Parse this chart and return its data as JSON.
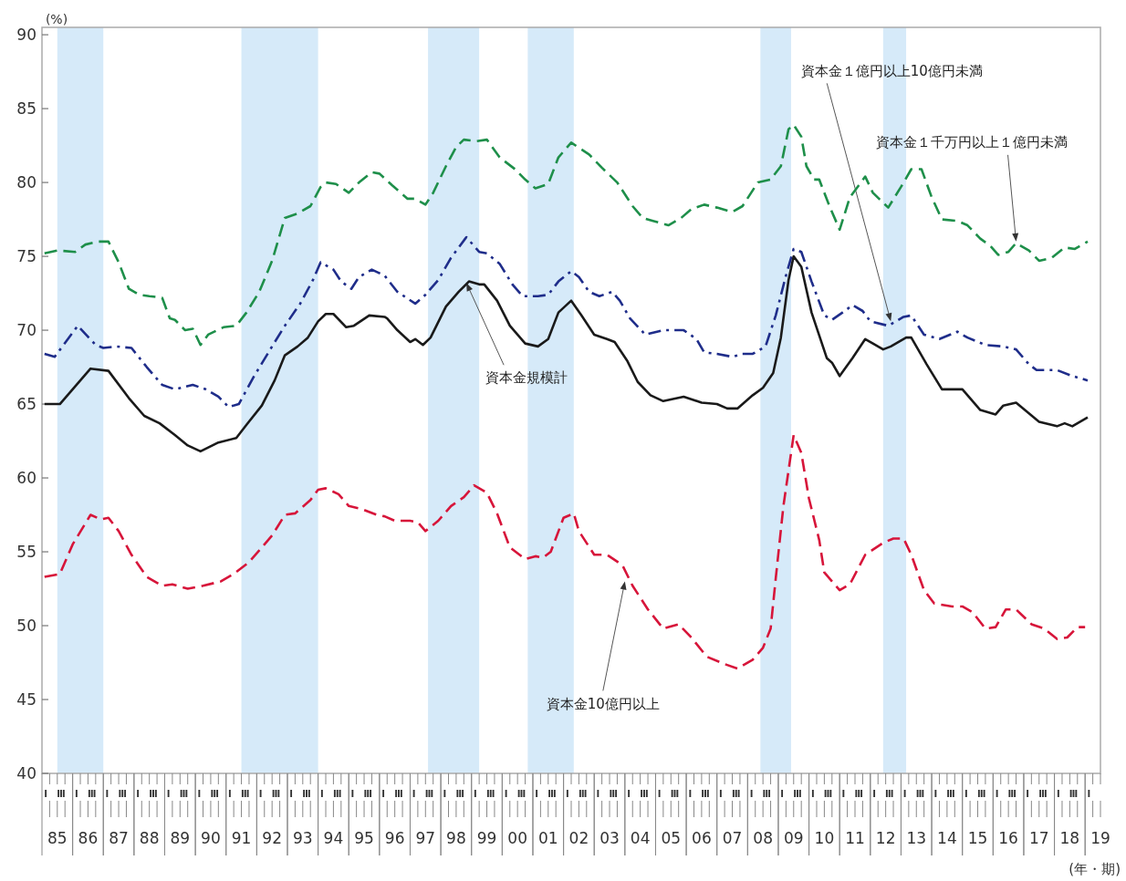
{
  "chart_data": {
    "type": "line",
    "ylabel": "(%)",
    "xlabel": "(年・期)",
    "xlim": [
      "1985-01",
      "2019-07"
    ],
    "ylim": [
      40,
      90.5
    ],
    "yticks": [
      40,
      45,
      50,
      55,
      60,
      65,
      70,
      75,
      80,
      85,
      90
    ],
    "xticks": [
      {
        "value": "1985-07",
        "label": "85"
      },
      {
        "value": "1986-07",
        "label": "86"
      },
      {
        "value": "1987-07",
        "label": "87"
      },
      {
        "value": "1988-07",
        "label": "88"
      },
      {
        "value": "1989-07",
        "label": "89"
      },
      {
        "value": "1990-07",
        "label": "90"
      },
      {
        "value": "1991-07",
        "label": "91"
      },
      {
        "value": "1992-07",
        "label": "92"
      },
      {
        "value": "1993-07",
        "label": "93"
      },
      {
        "value": "1994-07",
        "label": "94"
      },
      {
        "value": "1995-07",
        "label": "95"
      },
      {
        "value": "1996-07",
        "label": "96"
      },
      {
        "value": "1997-07",
        "label": "97"
      },
      {
        "value": "1998-07",
        "label": "98"
      },
      {
        "value": "1999-07",
        "label": "99"
      },
      {
        "value": "2000-07",
        "label": "00"
      },
      {
        "value": "2001-07",
        "label": "01"
      },
      {
        "value": "2002-07",
        "label": "02"
      },
      {
        "value": "2003-07",
        "label": "03"
      },
      {
        "value": "2004-07",
        "label": "04"
      },
      {
        "value": "2005-07",
        "label": "05"
      },
      {
        "value": "2006-07",
        "label": "06"
      },
      {
        "value": "2007-07",
        "label": "07"
      },
      {
        "value": "2008-07",
        "label": "08"
      },
      {
        "value": "2009-07",
        "label": "09"
      },
      {
        "value": "2010-07",
        "label": "10"
      },
      {
        "value": "2011-07",
        "label": "11"
      },
      {
        "value": "2012-07",
        "label": "12"
      },
      {
        "value": "2013-07",
        "label": "13"
      },
      {
        "value": "2014-07",
        "label": "14"
      },
      {
        "value": "2015-07",
        "label": "15"
      },
      {
        "value": "2016-07",
        "label": "16"
      },
      {
        "value": "2017-07",
        "label": "17"
      },
      {
        "value": "2018-07",
        "label": "18"
      },
      {
        "value": "2019-07",
        "label": "19"
      }
    ],
    "bands": [
      {
        "axis": "x",
        "from": "1985-07",
        "to": "1987-01",
        "color": "#d6eaf9"
      },
      {
        "axis": "x",
        "from": "1991-07",
        "to": "1994-01",
        "color": "#d6eaf9"
      },
      {
        "axis": "x",
        "from": "1997-08",
        "to": "1999-04",
        "color": "#d6eaf9"
      },
      {
        "axis": "x",
        "from": "2000-11",
        "to": "2002-05",
        "color": "#d6eaf9"
      },
      {
        "axis": "x",
        "from": "2008-06",
        "to": "2009-06",
        "color": "#d6eaf9"
      },
      {
        "axis": "x",
        "from": "2012-06",
        "to": "2013-03",
        "color": "#d6eaf9"
      }
    ],
    "series": [
      {
        "color": "#1e8f4a",
        "line_style": "dashed",
        "x": [
          "1985-02",
          "1985-07",
          "1986-02",
          "1986-06",
          "1986-11",
          "1987-03",
          "1987-07",
          "1987-11",
          "1988-03",
          "1988-07",
          "1988-12",
          "1989-03",
          "1989-05",
          "1989-09",
          "1989-12",
          "1990-03",
          "1990-06",
          "1990-12",
          "1991-05",
          "1991-09",
          "1992-02",
          "1992-07",
          "1992-12",
          "1993-05",
          "1993-10",
          "1994-02",
          "1994-04",
          "1994-08",
          "1995-01",
          "1995-05",
          "1995-10",
          "1996-01",
          "1996-06",
          "1996-12",
          "1997-03",
          "1997-07",
          "1997-10",
          "1998-03",
          "1998-07",
          "1998-10",
          "1999-03",
          "1999-07",
          "1999-12",
          "2000-06",
          "2000-10",
          "2001-02",
          "2001-07",
          "2001-11",
          "2002-04",
          "2002-11",
          "2003-04",
          "2003-10",
          "2004-04",
          "2004-08",
          "2004-12",
          "2005-06",
          "2005-11",
          "2006-03",
          "2006-08",
          "2007-01",
          "2007-07",
          "2007-11",
          "2008-05",
          "2008-10",
          "2009-02",
          "2009-05",
          "2009-07",
          "2009-10",
          "2009-12",
          "2010-03",
          "2010-05",
          "2010-09",
          "2011-01",
          "2011-05",
          "2011-11",
          "2012-02",
          "2012-08",
          "2013-01",
          "2013-05",
          "2013-09",
          "2014-01",
          "2014-05",
          "2014-11",
          "2015-03",
          "2015-08",
          "2015-12",
          "2016-03",
          "2016-07",
          "2016-10",
          "2017-03",
          "2017-07",
          "2017-12",
          "2018-05",
          "2018-09",
          "2019-02"
        ],
        "values": [
          75.2,
          75.4,
          75.3,
          75.8,
          76.0,
          76.0,
          74.6,
          72.8,
          72.4,
          72.3,
          72.2,
          70.8,
          70.7,
          70.0,
          70.1,
          69.0,
          69.7,
          70.2,
          70.3,
          71.2,
          72.6,
          74.7,
          77.6,
          77.9,
          78.4,
          79.7,
          80.0,
          79.9,
          79.3,
          80.0,
          80.7,
          80.6,
          79.8,
          78.9,
          78.9,
          78.5,
          79.3,
          81.1,
          82.4,
          82.9,
          82.8,
          82.9,
          81.7,
          80.9,
          80.2,
          79.6,
          79.9,
          81.7,
          82.7,
          81.9,
          81.0,
          80.0,
          78.4,
          77.6,
          77.4,
          77.1,
          77.6,
          78.2,
          78.5,
          78.3,
          78.0,
          78.4,
          80.0,
          80.2,
          81.1,
          83.6,
          83.9,
          83.1,
          81.1,
          80.2,
          80.2,
          78.4,
          76.8,
          79.0,
          80.4,
          79.3,
          78.3,
          79.7,
          80.9,
          80.9,
          79.0,
          77.5,
          77.4,
          77.1,
          76.2,
          75.7,
          75.1,
          75.3,
          75.9,
          75.4,
          74.7,
          74.9,
          75.6,
          75.5,
          76.0
        ]
      },
      {
        "color": "#1f2d8a",
        "line_style": "dashdot",
        "x": [
          "1985-02",
          "1985-06",
          "1986-03",
          "1986-10",
          "1987-01",
          "1987-06",
          "1987-12",
          "1988-06",
          "1988-12",
          "1989-05",
          "1989-12",
          "1990-05",
          "1990-10",
          "1991-02",
          "1991-06",
          "1991-12",
          "1992-07",
          "1992-12",
          "1993-06",
          "1993-11",
          "1994-02",
          "1994-07",
          "1994-10",
          "1995-02",
          "1995-05",
          "1995-10",
          "1996-03",
          "1996-08",
          "1997-03",
          "1997-07",
          "1997-12",
          "1998-05",
          "1998-11",
          "1999-04",
          "1999-07",
          "1999-12",
          "2000-05",
          "2000-09",
          "2001-03",
          "2001-07",
          "2001-11",
          "2002-04",
          "2002-07",
          "2002-11",
          "2003-03",
          "2003-08",
          "2003-11",
          "2004-03",
          "2004-09",
          "2005-04",
          "2005-12",
          "2006-05",
          "2006-08",
          "2007-01",
          "2007-07",
          "2007-11",
          "2008-03",
          "2008-08",
          "2008-12",
          "2009-04",
          "2009-07",
          "2009-10",
          "2010-02",
          "2010-07",
          "2010-10",
          "2011-03",
          "2011-06",
          "2011-10",
          "2012-01",
          "2012-08",
          "2013-02",
          "2013-05",
          "2013-10",
          "2014-04",
          "2014-11",
          "2015-03",
          "2015-10",
          "2016-05",
          "2016-10",
          "2017-03",
          "2017-06",
          "2018-02",
          "2018-08",
          "2019-02"
        ],
        "values": [
          68.4,
          68.2,
          70.3,
          69.0,
          68.8,
          68.9,
          68.8,
          67.5,
          66.3,
          66.0,
          66.3,
          66.0,
          65.5,
          64.8,
          65.0,
          66.9,
          68.9,
          70.3,
          71.8,
          73.4,
          74.6,
          74.1,
          73.3,
          72.8,
          73.6,
          74.1,
          73.7,
          72.6,
          71.8,
          72.4,
          73.4,
          74.9,
          76.3,
          75.3,
          75.2,
          74.5,
          73.1,
          72.3,
          72.3,
          72.4,
          73.3,
          74.0,
          73.6,
          72.6,
          72.3,
          72.6,
          72.0,
          70.8,
          69.7,
          70.0,
          70.0,
          69.4,
          68.5,
          68.4,
          68.2,
          68.4,
          68.4,
          68.9,
          71.0,
          73.7,
          75.5,
          75.3,
          73.3,
          71.0,
          70.7,
          71.3,
          71.7,
          71.3,
          70.6,
          70.3,
          70.9,
          71.0,
          69.7,
          69.4,
          69.9,
          69.5,
          69.0,
          68.9,
          68.7,
          67.7,
          67.3,
          67.3,
          66.9,
          66.6
        ]
      },
      {
        "color": "#1a1a1a",
        "line_style": "solid",
        "x": [
          "1985-02",
          "1985-08",
          "1986-08",
          "1987-03",
          "1987-11",
          "1988-05",
          "1988-11",
          "1989-05",
          "1989-10",
          "1990-03",
          "1990-10",
          "1991-05",
          "1991-09",
          "1992-03",
          "1992-08",
          "1992-12",
          "1993-05",
          "1993-09",
          "1994-01",
          "1994-04",
          "1994-07",
          "1994-12",
          "1995-03",
          "1995-09",
          "1996-03",
          "1996-04",
          "1996-08",
          "1997-01",
          "1997-03",
          "1997-06",
          "1997-09",
          "1998-03",
          "1998-08",
          "1998-12",
          "1999-04",
          "1999-06",
          "1999-11",
          "2000-04",
          "2000-07",
          "2000-10",
          "2001-03",
          "2001-07",
          "2001-11",
          "2002-04",
          "2002-08",
          "2003-01",
          "2003-06",
          "2003-09",
          "2004-02",
          "2004-06",
          "2004-11",
          "2005-04",
          "2005-12",
          "2006-07",
          "2007-01",
          "2007-05",
          "2007-09",
          "2008-03",
          "2008-07",
          "2008-11",
          "2009-02",
          "2009-05",
          "2009-07",
          "2009-10",
          "2010-02",
          "2010-08",
          "2010-10",
          "2011-01",
          "2011-06",
          "2011-11",
          "2012-02",
          "2012-06",
          "2012-09",
          "2013-03",
          "2013-05",
          "2013-11",
          "2014-05",
          "2015-01",
          "2015-08",
          "2016-02",
          "2016-05",
          "2016-10",
          "2017-07",
          "2018-02",
          "2018-05",
          "2018-08",
          "2019-02"
        ],
        "values": [
          65.0,
          65.0,
          67.4,
          67.25,
          65.4,
          64.2,
          63.7,
          62.9,
          62.2,
          61.8,
          62.4,
          62.7,
          63.6,
          64.9,
          66.6,
          68.3,
          68.9,
          69.5,
          70.6,
          71.1,
          71.1,
          70.2,
          70.3,
          71.0,
          70.9,
          70.8,
          70.0,
          69.2,
          69.4,
          69.0,
          69.5,
          71.6,
          72.6,
          73.3,
          73.1,
          73.1,
          72.0,
          70.3,
          69.7,
          69.1,
          68.9,
          69.4,
          71.2,
          72.0,
          71.0,
          69.7,
          69.4,
          69.2,
          67.9,
          66.5,
          65.6,
          65.2,
          65.5,
          65.1,
          65.0,
          64.7,
          64.7,
          65.6,
          66.1,
          67.1,
          69.5,
          73.4,
          75.0,
          74.3,
          71.2,
          68.1,
          67.8,
          66.9,
          68.1,
          69.4,
          69.1,
          68.7,
          68.9,
          69.5,
          69.5,
          67.7,
          66.0,
          66.0,
          64.6,
          64.3,
          64.9,
          65.1,
          63.8,
          63.5,
          63.7,
          63.5,
          64.1
        ]
      },
      {
        "color": "#d7153a",
        "line_style": "dashed",
        "x": [
          "1985-02",
          "1985-08",
          "1986-01",
          "1986-08",
          "1986-12",
          "1987-03",
          "1987-07",
          "1987-12",
          "1988-06",
          "1988-12",
          "1989-04",
          "1989-10",
          "1990-04",
          "1990-11",
          "1991-04",
          "1991-10",
          "1992-03",
          "1992-07",
          "1992-12",
          "1993-04",
          "1993-10",
          "1994-01",
          "1994-04",
          "1994-09",
          "1995-01",
          "1995-06",
          "1995-12",
          "1996-03",
          "1996-07",
          "1997-01",
          "1997-04",
          "1997-07",
          "1997-12",
          "1998-05",
          "1998-10",
          "1999-02",
          "1999-07",
          "1999-11",
          "2000-04",
          "2000-10",
          "2001-02",
          "2001-05",
          "2001-08",
          "2002-01",
          "2002-05",
          "2002-07",
          "2003-01",
          "2003-06",
          "2003-12",
          "2004-04",
          "2004-10",
          "2005-04",
          "2005-10",
          "2006-03",
          "2006-09",
          "2007-04",
          "2007-09",
          "2008-03",
          "2008-07",
          "2008-10",
          "2008-12",
          "2009-03",
          "2009-07",
          "2009-10",
          "2010-01",
          "2010-05",
          "2010-07",
          "2011-01",
          "2011-05",
          "2011-11",
          "2012-06",
          "2012-10",
          "2013-02",
          "2013-05",
          "2013-10",
          "2014-02",
          "2014-09",
          "2015-01",
          "2015-05",
          "2015-10",
          "2016-02",
          "2016-06",
          "2016-10",
          "2017-04",
          "2017-09",
          "2018-02",
          "2018-06",
          "2018-10",
          "2019-01"
        ],
        "values": [
          53.3,
          53.5,
          55.5,
          57.5,
          57.2,
          57.3,
          56.4,
          54.8,
          53.3,
          52.7,
          52.8,
          52.5,
          52.7,
          53.0,
          53.5,
          54.3,
          55.3,
          56.1,
          57.5,
          57.6,
          58.5,
          59.2,
          59.3,
          58.9,
          58.1,
          57.9,
          57.5,
          57.4,
          57.1,
          57.1,
          57.0,
          56.4,
          57.1,
          58.1,
          58.7,
          59.5,
          59.0,
          57.6,
          55.3,
          54.5,
          54.7,
          54.6,
          55.0,
          57.3,
          57.6,
          56.4,
          54.8,
          54.8,
          54.1,
          52.7,
          51.1,
          49.8,
          50.1,
          49.2,
          47.9,
          47.4,
          47.1,
          47.7,
          48.5,
          49.8,
          53.2,
          58.1,
          62.9,
          61.7,
          58.6,
          55.8,
          53.6,
          52.4,
          52.8,
          54.8,
          55.6,
          55.9,
          55.9,
          54.8,
          52.4,
          51.5,
          51.3,
          51.3,
          50.9,
          49.8,
          49.9,
          51.1,
          51.1,
          50.1,
          49.8,
          49.1,
          49.2,
          49.9,
          49.9
        ]
      }
    ],
    "annotations": [
      {
        "text": "資本金規模計",
        "x": "1998-11",
        "y": 73.2
      },
      {
        "text": "資本金10億円以上",
        "x": "2004-01",
        "y": 53.0
      },
      {
        "text": "資本金１億円以上10億円未満",
        "x": "2012-09",
        "y": 70.6
      },
      {
        "text": "資本金１千万円以上１億円未満",
        "x": "2016-10",
        "y": 76.0
      },
      "Ⅰ",
      "Ⅲ",
      "Ⅰ",
      "Ⅲ",
      "Ⅰ",
      "Ⅲ",
      "Ⅰ",
      "Ⅲ",
      "Ⅰ",
      "Ⅲ",
      "Ⅰ",
      "Ⅲ",
      "Ⅰ",
      "Ⅲ",
      "Ⅰ",
      "Ⅲ",
      "Ⅰ",
      "Ⅲ",
      "Ⅰ",
      "Ⅲ",
      "Ⅰ",
      "Ⅲ",
      "Ⅰ",
      "Ⅲ",
      "Ⅰ",
      "Ⅲ",
      "Ⅰ",
      "Ⅲ",
      "Ⅰ",
      "Ⅲ",
      "Ⅰ",
      "Ⅲ",
      "Ⅰ",
      "Ⅲ",
      "Ⅰ",
      "Ⅲ",
      "Ⅰ",
      "Ⅲ",
      "Ⅰ",
      "Ⅲ",
      "Ⅰ",
      "Ⅲ",
      "Ⅰ",
      "Ⅲ",
      "Ⅰ",
      "Ⅲ",
      "Ⅰ",
      "Ⅲ",
      "Ⅰ",
      "Ⅲ",
      "Ⅰ",
      "Ⅲ",
      "Ⅰ",
      "Ⅲ",
      "Ⅰ",
      "Ⅲ",
      "Ⅰ",
      "Ⅲ",
      "Ⅰ",
      "Ⅲ",
      "Ⅰ",
      "Ⅲ",
      "Ⅰ",
      "Ⅲ",
      "Ⅰ",
      "Ⅲ",
      "Ⅰ",
      "Ⅲ",
      "Ⅰ"
    ]
  }
}
